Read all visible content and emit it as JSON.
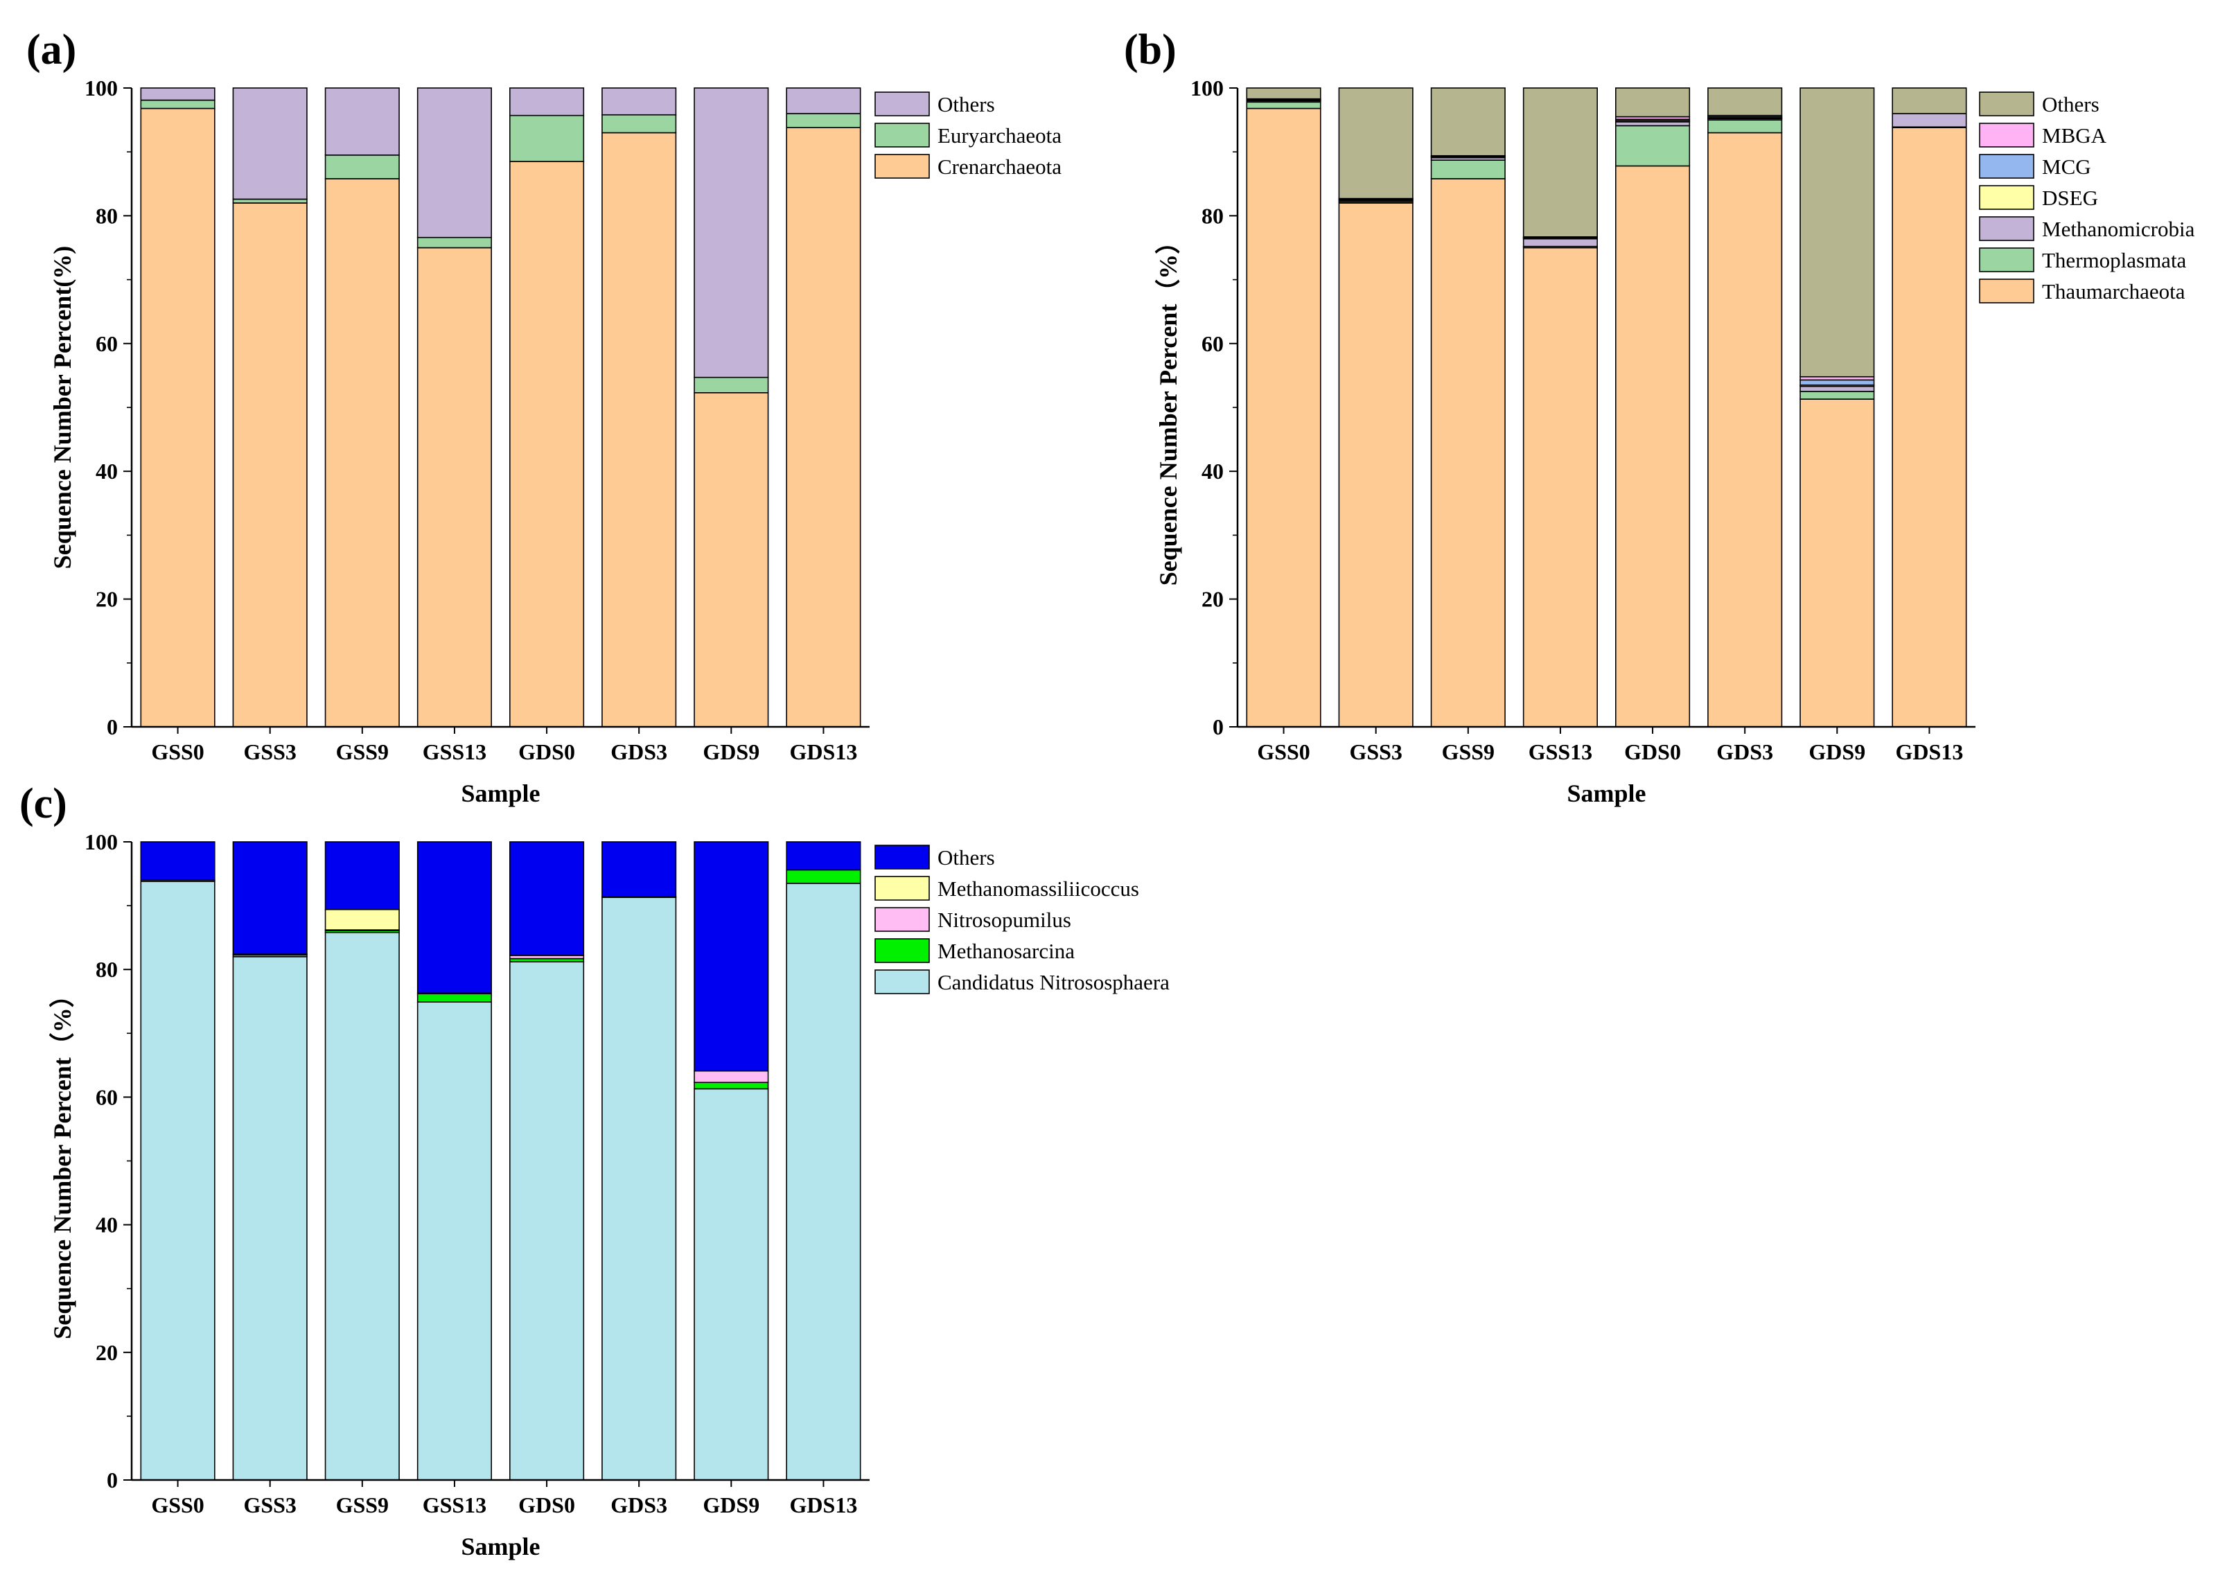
{
  "figure": {
    "panels": [
      {
        "label": "(a)"
      },
      {
        "label": "(b)"
      },
      {
        "label": "(c)"
      }
    ]
  },
  "chart_data": [
    {
      "type": "bar",
      "stacked": true,
      "panel_label": "(a)",
      "xlabel": "Sample",
      "ylabel": "Sequence Number Percent(%)",
      "ylim": [
        0,
        100
      ],
      "yticks": [
        0,
        20,
        40,
        60,
        80,
        100
      ],
      "categories": [
        "GSS0",
        "GSS3",
        "GSS9",
        "GSS13",
        "GDS0",
        "GDS3",
        "GDS9",
        "GDS13"
      ],
      "series": [
        {
          "name": "Crenarchaeota",
          "color": "#FDCB93",
          "values": [
            96.8,
            82.0,
            85.8,
            75.0,
            88.5,
            93.0,
            52.3,
            93.8
          ]
        },
        {
          "name": "Euryarchaeota",
          "color": "#9BD6A2",
          "values": [
            1.3,
            0.6,
            3.7,
            1.6,
            7.2,
            2.8,
            2.4,
            2.2
          ]
        },
        {
          "name": "Others",
          "color": "#C3B3D7",
          "values": [
            1.9,
            17.4,
            10.5,
            23.4,
            4.3,
            4.2,
            45.3,
            4.0
          ]
        }
      ],
      "legend_order": [
        "Others",
        "Euryarchaeota",
        "Crenarchaeota"
      ],
      "legend_position": "top-right outside"
    },
    {
      "type": "bar",
      "stacked": true,
      "panel_label": "(b)",
      "xlabel": "Sample",
      "ylabel": "Sequence Number Percent（%）",
      "ylim": [
        0,
        100
      ],
      "yticks": [
        0,
        20,
        40,
        60,
        80,
        100
      ],
      "categories": [
        "GSS0",
        "GSS3",
        "GSS9",
        "GSS13",
        "GDS0",
        "GDS3",
        "GDS9",
        "GDS13"
      ],
      "series": [
        {
          "name": "Thaumarchaeota",
          "color": "#FDCB93",
          "values": [
            96.8,
            82.0,
            85.8,
            75.0,
            87.8,
            93.0,
            51.3,
            93.8
          ]
        },
        {
          "name": "Thermoplasmata",
          "color": "#9BD6A2",
          "values": [
            1.0,
            0.2,
            2.9,
            0.2,
            6.3,
            2.0,
            1.2,
            0.1
          ]
        },
        {
          "name": "Methanomicrobia",
          "color": "#C3B3D7",
          "values": [
            0.2,
            0.2,
            0.4,
            1.2,
            0.6,
            0.2,
            0.8,
            2.1
          ]
        },
        {
          "name": "DSEG",
          "color": "#FFFFA8",
          "values": [
            0.1,
            0.1,
            0.1,
            0.1,
            0.2,
            0.1,
            0.2,
            0.0
          ]
        },
        {
          "name": "MCG",
          "color": "#93B7EE",
          "values": [
            0.1,
            0.1,
            0.1,
            0.1,
            0.2,
            0.2,
            0.8,
            0.0
          ]
        },
        {
          "name": "MBGA",
          "color": "#FFB3F5",
          "values": [
            0.1,
            0.1,
            0.1,
            0.1,
            0.4,
            0.2,
            0.5,
            0.0
          ]
        },
        {
          "name": "Others",
          "color": "#B5B68F",
          "values": [
            1.7,
            17.3,
            10.6,
            23.3,
            4.5,
            4.3,
            45.2,
            4.0
          ]
        }
      ],
      "legend_order": [
        "Others",
        "MBGA",
        "MCG",
        "DSEG",
        "Methanomicrobia",
        "Thermoplasmata",
        "Thaumarchaeota"
      ],
      "legend_position": "top-right outside"
    },
    {
      "type": "bar",
      "stacked": true,
      "panel_label": "(c)",
      "xlabel": "Sample",
      "ylabel": "Sequence Number Percent（%）",
      "ylim": [
        0,
        100
      ],
      "yticks": [
        0,
        20,
        40,
        60,
        80,
        100
      ],
      "categories": [
        "GSS0",
        "GSS3",
        "GSS9",
        "GSS13",
        "GDS0",
        "GDS3",
        "GDS9",
        "GDS13"
      ],
      "series": [
        {
          "name": "Candidatus Nitrososphaera",
          "color": "#B5E5EC",
          "values": [
            93.8,
            82.0,
            85.8,
            74.9,
            81.2,
            91.3,
            61.3,
            93.5
          ]
        },
        {
          "name": "Methanosarcina",
          "color": "#00F000",
          "values": [
            0.0,
            0.3,
            0.3,
            1.3,
            0.5,
            0.0,
            1.0,
            2.1
          ]
        },
        {
          "name": "Nitrosopumilus",
          "color": "#FFBDF3",
          "values": [
            0.2,
            0.1,
            0.1,
            0.1,
            0.5,
            0.1,
            1.8,
            0.0
          ]
        },
        {
          "name": "Methanomassiliicoccus",
          "color": "#FFFFA8",
          "values": [
            0.0,
            0.0,
            3.2,
            0.0,
            0.0,
            0.0,
            0.0,
            0.0
          ]
        },
        {
          "name": "Others",
          "color": "#0000F0",
          "values": [
            6.0,
            17.6,
            10.6,
            23.7,
            17.8,
            8.6,
            35.9,
            4.4
          ]
        }
      ],
      "legend_order": [
        "Others",
        "Methanomassiliicoccus",
        "Nitrosopumilus",
        "Methanosarcina",
        "Candidatus Nitrososphaera"
      ],
      "legend_position": "top-right outside"
    }
  ]
}
